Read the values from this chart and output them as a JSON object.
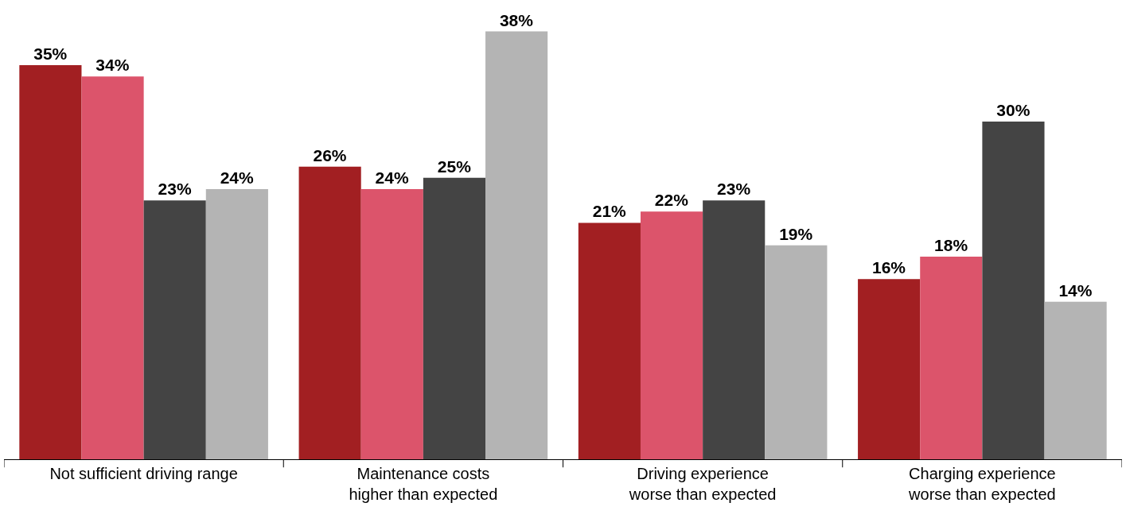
{
  "chart_data": {
    "type": "bar",
    "categories": [
      "Not sufficient driving range",
      "Maintenance costs\nhigher than expected",
      "Driving experience\nworse than expected",
      "Charging experience\nworse than expected"
    ],
    "series": [
      {
        "color": "#a21f22",
        "values": [
          35,
          26,
          21,
          16
        ],
        "value_labels": [
          "35%",
          "26%",
          "21%",
          "16%"
        ]
      },
      {
        "color": "#dc546b",
        "values": [
          34,
          24,
          22,
          18
        ],
        "value_labels": [
          "34%",
          "24%",
          "22%",
          "18%"
        ]
      },
      {
        "color": "#444444",
        "values": [
          23,
          25,
          23,
          30
        ],
        "value_labels": [
          "23%",
          "25%",
          "23%",
          "30%"
        ]
      },
      {
        "color": "#b4b4b4",
        "values": [
          24,
          38,
          19,
          14
        ],
        "value_labels": [
          "24%",
          "38%",
          "19%",
          "14%"
        ]
      }
    ]
  }
}
